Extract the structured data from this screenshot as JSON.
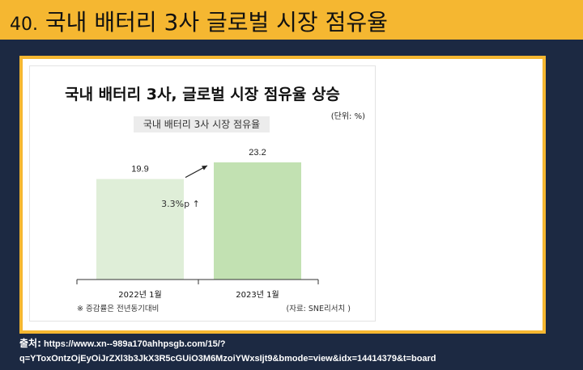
{
  "slide": {
    "number": "40.",
    "title": "국내 배터리 3사 글로벌 시장 점유율"
  },
  "chart_data": {
    "type": "bar",
    "title": "국내 배터리 3사, 글로벌 시장 점유율 상승",
    "subtitle": "국내 배터리 3사 시장 점유율",
    "unit": "(단위: %)",
    "categories": [
      "2022년 1월",
      "2023년 1월"
    ],
    "values": [
      19.9,
      23.2
    ],
    "value_labels": [
      "19.9",
      "23.2"
    ],
    "bar_colors": [
      "#dfeed8",
      "#c2e1b2"
    ],
    "annotation": "3.3%p ↑",
    "footnote": "※ 증감률은 전년동기대비",
    "source_note": "(자료: SNE리서치 )",
    "grid": false,
    "legend": "none"
  },
  "source": {
    "label": "출처:",
    "text": "https://www.xn--989a170ahhpsgb.com/15/?q=YToxOntzOjEyOiJrZXl3b3JkX3R5cGUiO3M6MzoiYWxsIjt9&bmode=view&idx=14414379&t=board"
  }
}
